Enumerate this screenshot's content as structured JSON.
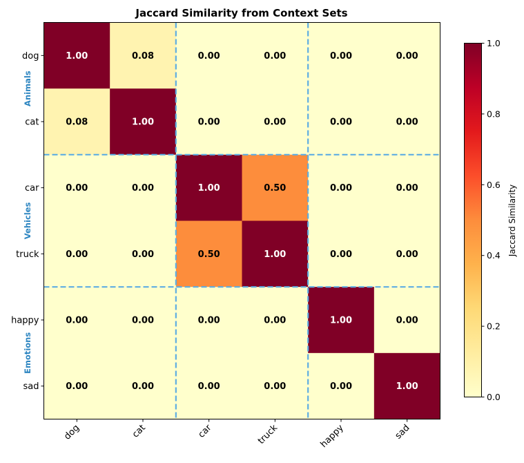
{
  "chart_data": {
    "type": "heatmap",
    "title": "Jaccard Similarity from Context Sets",
    "x_categories": [
      "dog",
      "cat",
      "car",
      "truck",
      "happy",
      "sad"
    ],
    "y_categories": [
      "dog",
      "cat",
      "car",
      "truck",
      "happy",
      "sad"
    ],
    "values": [
      [
        1.0,
        0.08,
        0.0,
        0.0,
        0.0,
        0.0
      ],
      [
        0.08,
        1.0,
        0.0,
        0.0,
        0.0,
        0.0
      ],
      [
        0.0,
        0.0,
        1.0,
        0.5,
        0.0,
        0.0
      ],
      [
        0.0,
        0.0,
        0.5,
        1.0,
        0.0,
        0.0
      ],
      [
        0.0,
        0.0,
        0.0,
        0.0,
        1.0,
        0.0
      ],
      [
        0.0,
        0.0,
        0.0,
        0.0,
        0.0,
        1.0
      ]
    ],
    "value_format": "2 decimals",
    "groups": [
      {
        "name": "Animals",
        "members": [
          "dog",
          "cat"
        ]
      },
      {
        "name": "Vehicles",
        "members": [
          "car",
          "truck"
        ]
      },
      {
        "name": "Emotions",
        "members": [
          "happy",
          "sad"
        ]
      }
    ],
    "group_label_color": "#2e86c1",
    "group_separator_color": "#5dade2",
    "colormap": "YlOrRd",
    "colorbar": {
      "label": "Jaccard Similarity",
      "range": [
        0,
        1
      ],
      "ticks": [
        "0.0",
        "0.2",
        "0.4",
        "0.6",
        "0.8",
        "1.0"
      ]
    },
    "grid": false
  }
}
